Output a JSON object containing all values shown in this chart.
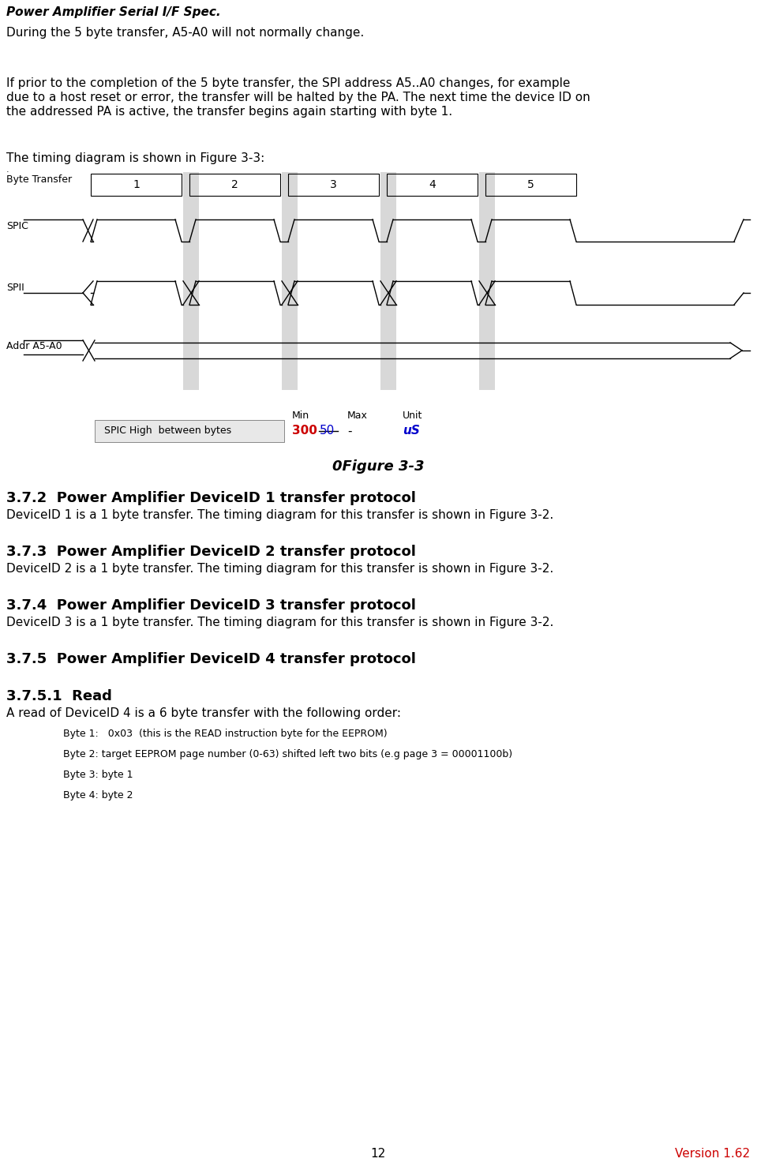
{
  "title_bold_italic": "Power Amplifier Serial I/F Spec.",
  "page_number": "12",
  "version": "Version 1.62",
  "version_color": "#cc0000",
  "background_color": "#ffffff",
  "para1": "During the 5 byte transfer, A5-A0 will not normally change.",
  "para2_line1": "If prior to the completion of the 5 byte transfer, the SPI address A5..A0 changes, for example",
  "para2_line2": "due to a host reset or error, the transfer will be halted by the PA. The next time the device ID on",
  "para2_line3": "the addressed PA is active, the transfer begins again starting with byte 1.",
  "para3": "The timing diagram is shown in Figure 3-3:",
  "figure_caption": "0Figure 3-3",
  "section_372_title": "3.7.2  Power Amplifier DeviceID 1 transfer protocol",
  "section_372_body": "DeviceID 1 is a 1 byte transfer. The timing diagram for this transfer is shown in Figure 3-2.",
  "section_373_title": "3.7.3  Power Amplifier DeviceID 2 transfer protocol",
  "section_373_body": "DeviceID 2 is a 1 byte transfer. The timing diagram for this transfer is shown in Figure 3-2.",
  "section_374_title": "3.7.4  Power Amplifier DeviceID 3 transfer protocol",
  "section_374_body": "DeviceID 3 is a 1 byte transfer. The timing diagram for this transfer is shown in Figure 3-2.",
  "section_375_title": "3.7.5  Power Amplifier DeviceID 4 transfer protocol",
  "section_3751_title": "3.7.5.1  Read",
  "section_3751_body": "A read of DeviceID 4 is a 6 byte transfer with the following order:",
  "byte_items": [
    "Byte 1:   0x03  (this is the READ instruction byte for the EEPROM)",
    "Byte 2: target EEPROM page number (0-63) shifted left two bits (e.g page 3 = 00001100b)",
    "Byte 3: byte 1",
    "Byte 4: byte 2"
  ],
  "table_label": "SPIC High  between bytes",
  "table_min": "300",
  "table_min_color": "#cc0000",
  "table_min_strikethrough": "50",
  "table_min_strikethrough_color": "#0000cc",
  "table_max": "-",
  "table_unit": "uS",
  "table_unit_color": "#0000cc",
  "diagram_shade_color": "#d8d8d8",
  "diagram_line_color": "#000000",
  "byte_labels": [
    "1",
    "2",
    "3",
    "4",
    "5"
  ],
  "signal_labels": [
    "Byte Transfer",
    "SPIC",
    "SPII",
    "Addr A5-A0"
  ]
}
